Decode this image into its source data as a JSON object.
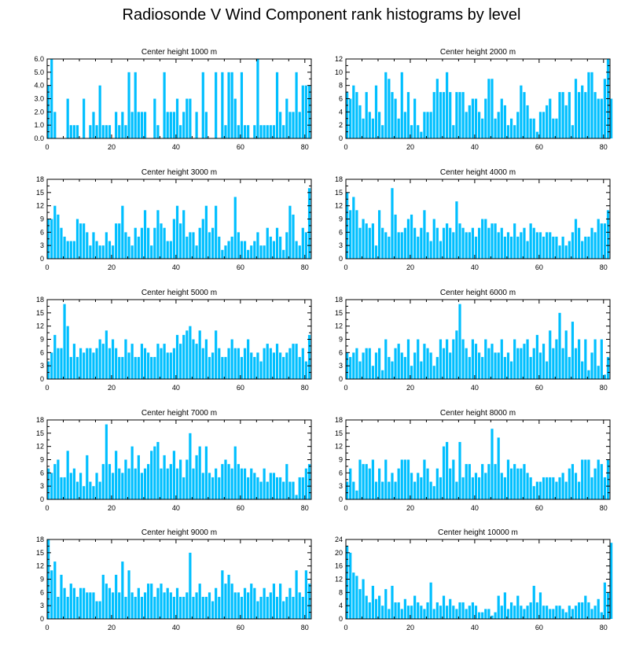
{
  "title": "Radiosonde V Wind Component rank histograms by level",
  "bar_color": "#00bfff",
  "axis_color": "#000000",
  "chart_data": [
    {
      "type": "bar",
      "title": "Center height 1000 m",
      "xlim": [
        0,
        82
      ],
      "ylim": [
        0,
        6
      ],
      "xticks": [
        0,
        20,
        40,
        60,
        80
      ],
      "yticks": [
        0.0,
        1.0,
        2.0,
        3.0,
        4.0,
        5.0,
        6.0
      ],
      "ytick_labels": [
        "0.0",
        "1.0",
        "2.0",
        "3.0",
        "4.0",
        "5.0",
        "6.0"
      ],
      "values": [
        4,
        6,
        2,
        0,
        0,
        0,
        3,
        1,
        1,
        1,
        0,
        3,
        0,
        1,
        2,
        1,
        4,
        1,
        1,
        1,
        0,
        2,
        1,
        2,
        1,
        5,
        2,
        5,
        2,
        2,
        2,
        0,
        0,
        3,
        1,
        0,
        5,
        2,
        2,
        2,
        3,
        1,
        2,
        3,
        3,
        0,
        2,
        0,
        5,
        2,
        0,
        0,
        5,
        0,
        5,
        1,
        5,
        5,
        3,
        1,
        5,
        1,
        1,
        0,
        1,
        6,
        1,
        1,
        1,
        1,
        1,
        5,
        2,
        1,
        3,
        2,
        2,
        5,
        2,
        4,
        4,
        4
      ]
    },
    {
      "type": "bar",
      "title": "Center height 2000 m",
      "xlim": [
        0,
        82
      ],
      "ylim": [
        0,
        12
      ],
      "xticks": [
        0,
        20,
        40,
        60,
        80
      ],
      "yticks": [
        0,
        2,
        4,
        6,
        8,
        10,
        12
      ],
      "ytick_labels": [
        "0",
        "2",
        "4",
        "6",
        "8",
        "10",
        "12"
      ],
      "values": [
        7,
        6,
        8,
        7,
        5,
        3,
        7,
        4,
        3,
        8,
        4,
        2,
        10,
        9,
        7,
        6,
        3,
        10,
        4,
        7,
        2,
        6,
        2,
        1,
        4,
        4,
        4,
        7,
        9,
        7,
        7,
        10,
        7,
        2,
        7,
        7,
        7,
        4,
        5,
        6,
        6,
        4,
        3,
        6,
        9,
        9,
        3,
        4,
        6,
        5,
        2,
        3,
        2,
        4,
        8,
        7,
        5,
        3,
        3,
        1,
        4,
        4,
        5,
        6,
        3,
        3,
        7,
        7,
        5,
        7,
        2,
        9,
        7,
        8,
        7,
        10,
        10,
        7,
        6,
        6,
        9,
        12,
        6
      ]
    },
    {
      "type": "bar",
      "title": "Center height 3000 m",
      "xlim": [
        0,
        82
      ],
      "ylim": [
        0,
        18
      ],
      "xticks": [
        0,
        20,
        40,
        60,
        80
      ],
      "yticks": [
        0,
        3,
        6,
        9,
        12,
        15,
        18
      ],
      "ytick_labels": [
        "0",
        "3",
        "6",
        "9",
        "12",
        "15",
        "18"
      ],
      "values": [
        9,
        9,
        12,
        10,
        7,
        5,
        4,
        4,
        4,
        9,
        8,
        8,
        6,
        3,
        6,
        4,
        3,
        3,
        6,
        4,
        3,
        8,
        8,
        12,
        6,
        5,
        3,
        7,
        5,
        7,
        11,
        7,
        3,
        7,
        11,
        8,
        7,
        4,
        4,
        9,
        12,
        8,
        11,
        5,
        6,
        6,
        3,
        7,
        9,
        12,
        6,
        7,
        12,
        5,
        2,
        3,
        4,
        5,
        14,
        6,
        4,
        4,
        2,
        3,
        4,
        6,
        3,
        3,
        7,
        5,
        4,
        7,
        5,
        2,
        6,
        12,
        10,
        4,
        3,
        7,
        6,
        16
      ]
    },
    {
      "type": "bar",
      "title": "Center height 4000 m",
      "xlim": [
        0,
        82
      ],
      "ylim": [
        0,
        18
      ],
      "xticks": [
        0,
        20,
        40,
        60,
        80
      ],
      "yticks": [
        0,
        3,
        6,
        9,
        12,
        15,
        18
      ],
      "ytick_labels": [
        "0",
        "3",
        "6",
        "9",
        "12",
        "15",
        "18"
      ],
      "values": [
        15,
        11,
        14,
        11,
        7,
        9,
        8,
        7,
        8,
        3,
        11,
        7,
        6,
        5,
        16,
        10,
        6,
        6,
        7,
        9,
        10,
        7,
        5,
        7,
        11,
        6,
        4,
        9,
        7,
        4,
        7,
        8,
        7,
        6,
        13,
        8,
        7,
        6,
        6,
        7,
        5,
        7,
        9,
        9,
        7,
        8,
        8,
        6,
        7,
        5,
        6,
        5,
        8,
        5,
        6,
        7,
        4,
        8,
        7,
        6,
        6,
        5,
        6,
        6,
        5,
        5,
        3,
        5,
        3,
        4,
        6,
        9,
        7,
        4,
        5,
        5,
        7,
        6,
        9,
        8,
        8,
        11
      ]
    },
    {
      "type": "bar",
      "title": "Center height 5000 m",
      "xlim": [
        0,
        82
      ],
      "ylim": [
        0,
        18
      ],
      "xticks": [
        0,
        20,
        40,
        60,
        80
      ],
      "yticks": [
        0,
        3,
        6,
        9,
        12,
        15,
        18
      ],
      "ytick_labels": [
        "0",
        "3",
        "6",
        "9",
        "12",
        "15",
        "18"
      ],
      "values": [
        4,
        6,
        10,
        7,
        7,
        17,
        12,
        5,
        8,
        5,
        7,
        6,
        7,
        7,
        6,
        7,
        9,
        8,
        11,
        7,
        9,
        7,
        5,
        5,
        9,
        6,
        8,
        5,
        5,
        8,
        7,
        6,
        5,
        5,
        8,
        7,
        8,
        6,
        6,
        7,
        10,
        8,
        10,
        11,
        12,
        9,
        8,
        11,
        7,
        9,
        5,
        6,
        11,
        7,
        5,
        5,
        7,
        9,
        7,
        7,
        5,
        7,
        9,
        6,
        5,
        6,
        4,
        7,
        8,
        7,
        6,
        8,
        6,
        5,
        6,
        7,
        8,
        8,
        5,
        7,
        4,
        10
      ]
    },
    {
      "type": "bar",
      "title": "Center height 6000 m",
      "xlim": [
        0,
        82
      ],
      "ylim": [
        0,
        18
      ],
      "xticks": [
        0,
        20,
        40,
        60,
        80
      ],
      "yticks": [
        0,
        3,
        6,
        9,
        12,
        15,
        18
      ],
      "ytick_labels": [
        "0",
        "3",
        "6",
        "9",
        "12",
        "15",
        "18"
      ],
      "values": [
        6,
        5,
        6,
        7,
        4,
        6,
        7,
        7,
        3,
        6,
        7,
        2,
        9,
        5,
        4,
        7,
        8,
        6,
        5,
        9,
        3,
        6,
        9,
        4,
        8,
        7,
        6,
        3,
        5,
        9,
        7,
        9,
        6,
        9,
        11,
        17,
        9,
        7,
        5,
        9,
        8,
        6,
        5,
        9,
        7,
        8,
        6,
        6,
        9,
        5,
        6,
        4,
        9,
        7,
        7,
        8,
        9,
        5,
        7,
        10,
        6,
        8,
        4,
        11,
        7,
        9,
        15,
        7,
        11,
        5,
        13,
        7,
        9,
        4,
        9,
        2,
        6,
        9,
        3,
        9,
        1,
        5
      ]
    },
    {
      "type": "bar",
      "title": "Center height 7000 m",
      "xlim": [
        0,
        82
      ],
      "ylim": [
        0,
        18
      ],
      "xticks": [
        0,
        20,
        40,
        60,
        80
      ],
      "yticks": [
        0,
        3,
        6,
        9,
        12,
        15,
        18
      ],
      "ytick_labels": [
        "0",
        "3",
        "6",
        "9",
        "12",
        "15",
        "18"
      ],
      "values": [
        7,
        6,
        8,
        9,
        5,
        5,
        11,
        6,
        7,
        4,
        6,
        3,
        10,
        4,
        3,
        6,
        4,
        8,
        17,
        8,
        6,
        11,
        7,
        6,
        9,
        7,
        12,
        7,
        10,
        6,
        7,
        8,
        11,
        12,
        13,
        7,
        10,
        7,
        8,
        11,
        7,
        9,
        5,
        9,
        15,
        7,
        10,
        12,
        6,
        12,
        6,
        5,
        7,
        5,
        8,
        9,
        8,
        7,
        12,
        8,
        7,
        7,
        5,
        7,
        6,
        5,
        4,
        7,
        4,
        6,
        6,
        5,
        5,
        4,
        8,
        4,
        4,
        1,
        5,
        5,
        7,
        8
      ]
    },
    {
      "type": "bar",
      "title": "Center height 8000 m",
      "xlim": [
        0,
        82
      ],
      "ylim": [
        0,
        18
      ],
      "xticks": [
        0,
        20,
        40,
        60,
        80
      ],
      "yticks": [
        0,
        3,
        6,
        9,
        12,
        15,
        18
      ],
      "ytick_labels": [
        "0",
        "3",
        "6",
        "9",
        "12",
        "15",
        "18"
      ],
      "values": [
        4,
        7,
        4,
        2,
        9,
        8,
        8,
        7,
        9,
        4,
        7,
        4,
        9,
        4,
        6,
        4,
        7,
        9,
        9,
        9,
        6,
        4,
        6,
        5,
        9,
        7,
        4,
        3,
        7,
        5,
        12,
        13,
        7,
        9,
        4,
        13,
        5,
        8,
        8,
        5,
        6,
        5,
        8,
        6,
        8,
        16,
        8,
        14,
        6,
        5,
        9,
        7,
        8,
        7,
        7,
        8,
        6,
        5,
        3,
        4,
        4,
        5,
        5,
        5,
        5,
        4,
        5,
        6,
        4,
        7,
        8,
        6,
        4,
        9,
        9,
        9,
        5,
        7,
        9,
        8,
        5,
        9
      ]
    },
    {
      "type": "bar",
      "title": "Center height 9000 m",
      "xlim": [
        0,
        82
      ],
      "ylim": [
        0,
        18
      ],
      "xticks": [
        0,
        20,
        40,
        60,
        80
      ],
      "yticks": [
        0,
        3,
        6,
        9,
        12,
        15,
        18
      ],
      "ytick_labels": [
        "0",
        "3",
        "6",
        "9",
        "12",
        "15",
        "18"
      ],
      "values": [
        18,
        11,
        13,
        5,
        10,
        7,
        5,
        8,
        7,
        5,
        7,
        7,
        6,
        6,
        6,
        4,
        4,
        10,
        8,
        7,
        6,
        10,
        6,
        13,
        5,
        11,
        6,
        5,
        7,
        5,
        6,
        8,
        8,
        5,
        7,
        8,
        6,
        7,
        6,
        5,
        7,
        5,
        5,
        6,
        15,
        5,
        6,
        8,
        5,
        5,
        6,
        4,
        7,
        5,
        11,
        8,
        10,
        8,
        6,
        6,
        5,
        7,
        6,
        8,
        7,
        4,
        5,
        7,
        5,
        6,
        8,
        5,
        8,
        4,
        5,
        7,
        5,
        11,
        6,
        5,
        11,
        8
      ]
    },
    {
      "type": "bar",
      "title": "Center height 10000 m",
      "xlim": [
        0,
        82
      ],
      "ylim": [
        0,
        24
      ],
      "xticks": [
        0,
        20,
        40,
        60,
        80
      ],
      "yticks": [
        0,
        4,
        8,
        12,
        16,
        20,
        24
      ],
      "ytick_labels": [
        "0",
        "4",
        "8",
        "12",
        "16",
        "20",
        "24"
      ],
      "values": [
        22,
        20,
        14,
        13,
        9,
        12,
        7,
        5,
        10,
        6,
        7,
        4,
        9,
        3,
        10,
        5,
        5,
        3,
        6,
        4,
        4,
        7,
        5,
        4,
        3,
        5,
        11,
        3,
        5,
        4,
        7,
        4,
        6,
        4,
        3,
        5,
        5,
        3,
        4,
        5,
        4,
        2,
        2,
        3,
        3,
        1,
        2,
        7,
        4,
        8,
        3,
        5,
        4,
        7,
        4,
        3,
        4,
        5,
        10,
        5,
        8,
        4,
        4,
        3,
        3,
        4,
        4,
        3,
        2,
        4,
        3,
        4,
        5,
        5,
        7,
        5,
        3,
        4,
        6,
        2,
        11,
        8,
        23
      ]
    }
  ]
}
